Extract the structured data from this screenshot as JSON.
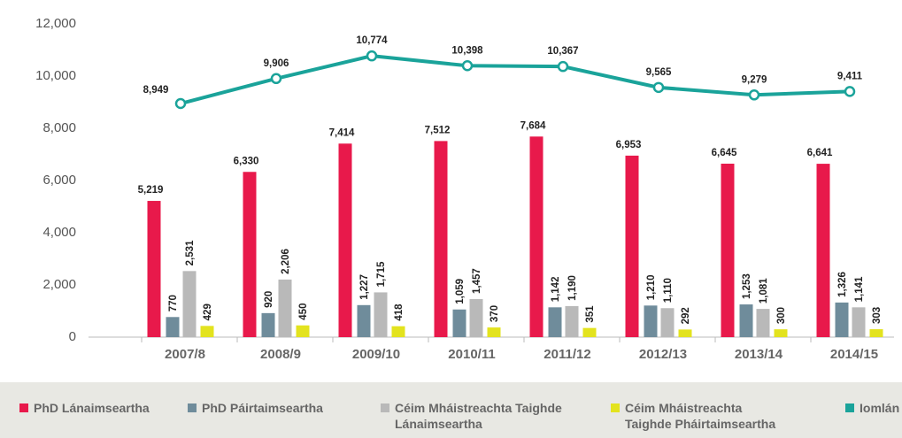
{
  "chart_data": {
    "type": "bar",
    "categories": [
      "2007/8",
      "2008/9",
      "2009/10",
      "2010/11",
      "2011/12",
      "2012/13",
      "2013/14",
      "2014/15"
    ],
    "series": [
      {
        "name": "PhD Lánaimseartha",
        "color": "#e8194b",
        "values": [
          5219,
          6330,
          7414,
          7512,
          7684,
          6953,
          6645,
          6641
        ],
        "value_labels": [
          "5,219",
          "6,330",
          "7,414",
          "7,512",
          "7,684",
          "6,953",
          "6,645",
          "6,641"
        ]
      },
      {
        "name": "PhD Páirtaimseartha",
        "color": "#6f8c9b",
        "values": [
          770,
          920,
          1227,
          1059,
          1142,
          1210,
          1253,
          1326
        ],
        "value_labels": [
          "770",
          "920",
          "1,227",
          "1,059",
          "1,142",
          "1,210",
          "1,253",
          "1,326"
        ]
      },
      {
        "name": "Céim Mháistreachta Taighde Lánaimseartha",
        "color": "#b9b9b9",
        "values": [
          2531,
          2206,
          1715,
          1457,
          1190,
          1110,
          1081,
          1141
        ],
        "value_labels": [
          "2,531",
          "2,206",
          "1,715",
          "1,457",
          "1,190",
          "1,110",
          "1,081",
          "1,141"
        ]
      },
      {
        "name": "Céim Mháistreachta Taighde Pháirtaimseartha",
        "color": "#e3e31e",
        "values": [
          429,
          450,
          418,
          370,
          351,
          292,
          300,
          303
        ],
        "value_labels": [
          "429",
          "450",
          "418",
          "370",
          "351",
          "292",
          "300",
          "303"
        ]
      },
      {
        "name": "Iomlán",
        "type": "line",
        "color": "#1aa39a",
        "values": [
          8949,
          9906,
          10774,
          10398,
          10367,
          9565,
          9279,
          9411
        ],
        "value_labels": [
          "8,949",
          "9,906",
          "10,774",
          "10,398",
          "10,367",
          "9,565",
          "9,279",
          "9,411"
        ]
      }
    ],
    "ylim": [
      0,
      12000
    ],
    "yticks": [
      0,
      {
        "value": 2000,
        "label": "2,000"
      },
      {
        "value": 4000,
        "label": "4,000"
      },
      {
        "value": 6000,
        "label": "6,000"
      },
      {
        "value": 8000,
        "label": "8,000"
      },
      {
        "value": 10000,
        "label": "10,000"
      },
      {
        "value": 12000,
        "label": "12,000"
      }
    ]
  }
}
